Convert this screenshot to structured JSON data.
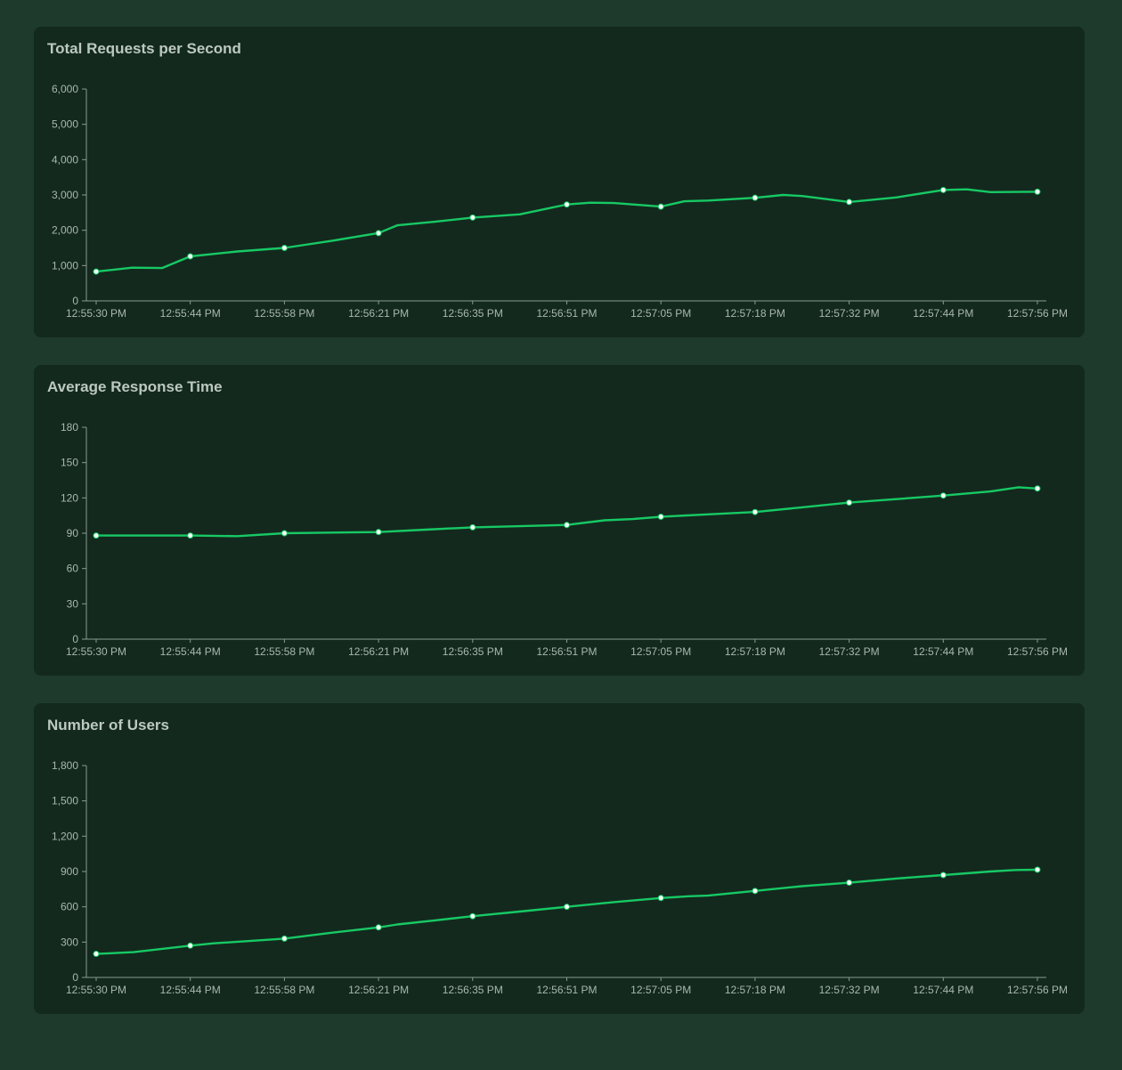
{
  "page": {
    "background": "#1e3a2c",
    "panel_background": "#13291e"
  },
  "colors": {
    "line": "#17c964",
    "marker_fill": "#f6fff8",
    "axis_line": "#8a9b8e",
    "axis_text": "#a9b8ac",
    "title_text": "#bcc9bf"
  },
  "chart_data": [
    {
      "type": "line",
      "title": "Total Requests per Second",
      "categories": [
        "12:55:30 PM",
        "12:55:44 PM",
        "12:55:58 PM",
        "12:56:21 PM",
        "12:56:35 PM",
        "12:56:51 PM",
        "12:57:05 PM",
        "12:57:18 PM",
        "12:57:32 PM",
        "12:57:44 PM",
        "12:57:56 PM"
      ],
      "values": [
        830,
        1260,
        1500,
        1920,
        2360,
        2730,
        2670,
        2920,
        2800,
        3140,
        3090
      ],
      "ylim": [
        0,
        6000
      ],
      "ytick_labels": [
        "0",
        "1,000",
        "2,000",
        "3,000",
        "4,000",
        "5,000",
        "6,000"
      ],
      "grid": false,
      "legend": "none",
      "shape_points": [
        [
          0,
          830
        ],
        [
          0.038,
          940
        ],
        [
          0.07,
          930
        ],
        [
          0.1,
          1260
        ],
        [
          0.15,
          1400
        ],
        [
          0.2,
          1500
        ],
        [
          0.25,
          1700
        ],
        [
          0.3,
          1920
        ],
        [
          0.32,
          2140
        ],
        [
          0.36,
          2240
        ],
        [
          0.4,
          2360
        ],
        [
          0.45,
          2450
        ],
        [
          0.5,
          2730
        ],
        [
          0.525,
          2780
        ],
        [
          0.55,
          2770
        ],
        [
          0.6,
          2670
        ],
        [
          0.625,
          2820
        ],
        [
          0.65,
          2840
        ],
        [
          0.7,
          2920
        ],
        [
          0.73,
          3000
        ],
        [
          0.75,
          2970
        ],
        [
          0.8,
          2800
        ],
        [
          0.85,
          2930
        ],
        [
          0.9,
          3140
        ],
        [
          0.925,
          3160
        ],
        [
          0.95,
          3080
        ],
        [
          1.0,
          3090
        ]
      ]
    },
    {
      "type": "line",
      "title": "Average Response Time",
      "categories": [
        "12:55:30 PM",
        "12:55:44 PM",
        "12:55:58 PM",
        "12:56:21 PM",
        "12:56:35 PM",
        "12:56:51 PM",
        "12:57:05 PM",
        "12:57:18 PM",
        "12:57:32 PM",
        "12:57:44 PM",
        "12:57:56 PM"
      ],
      "values": [
        88,
        88,
        90,
        91,
        95,
        97,
        104,
        108,
        116,
        122,
        128
      ],
      "ylim": [
        0,
        180
      ],
      "ytick_labels": [
        "0",
        "30",
        "60",
        "90",
        "120",
        "150",
        "180"
      ],
      "grid": false,
      "legend": "none",
      "shape_points": [
        [
          0,
          88
        ],
        [
          0.05,
          88
        ],
        [
          0.1,
          88
        ],
        [
          0.15,
          87.5
        ],
        [
          0.2,
          90
        ],
        [
          0.25,
          90.5
        ],
        [
          0.3,
          91
        ],
        [
          0.35,
          93
        ],
        [
          0.4,
          95
        ],
        [
          0.45,
          96
        ],
        [
          0.5,
          97
        ],
        [
          0.54,
          101
        ],
        [
          0.57,
          102
        ],
        [
          0.6,
          104
        ],
        [
          0.65,
          106
        ],
        [
          0.7,
          108
        ],
        [
          0.75,
          112
        ],
        [
          0.8,
          116
        ],
        [
          0.85,
          119
        ],
        [
          0.9,
          122
        ],
        [
          0.95,
          125.5
        ],
        [
          0.98,
          129
        ],
        [
          1.0,
          128
        ]
      ]
    },
    {
      "type": "line",
      "title": "Number of Users",
      "categories": [
        "12:55:30 PM",
        "12:55:44 PM",
        "12:55:58 PM",
        "12:56:21 PM",
        "12:56:35 PM",
        "12:56:51 PM",
        "12:57:05 PM",
        "12:57:18 PM",
        "12:57:32 PM",
        "12:57:44 PM",
        "12:57:56 PM"
      ],
      "values": [
        200,
        270,
        330,
        425,
        520,
        600,
        675,
        735,
        805,
        870,
        915
      ],
      "ylim": [
        0,
        1800
      ],
      "ytick_labels": [
        "0",
        "300",
        "600",
        "900",
        "1,200",
        "1,500",
        "1,800"
      ],
      "grid": false,
      "legend": "none",
      "shape_points": [
        [
          0,
          200
        ],
        [
          0.04,
          215
        ],
        [
          0.1,
          270
        ],
        [
          0.125,
          290
        ],
        [
          0.2,
          330
        ],
        [
          0.25,
          380
        ],
        [
          0.3,
          425
        ],
        [
          0.32,
          450
        ],
        [
          0.36,
          485
        ],
        [
          0.4,
          520
        ],
        [
          0.45,
          560
        ],
        [
          0.5,
          600
        ],
        [
          0.55,
          640
        ],
        [
          0.6,
          675
        ],
        [
          0.63,
          690
        ],
        [
          0.65,
          695
        ],
        [
          0.7,
          735
        ],
        [
          0.75,
          775
        ],
        [
          0.8,
          805
        ],
        [
          0.85,
          840
        ],
        [
          0.9,
          870
        ],
        [
          0.95,
          900
        ],
        [
          0.975,
          912
        ],
        [
          1.0,
          915
        ]
      ]
    }
  ]
}
